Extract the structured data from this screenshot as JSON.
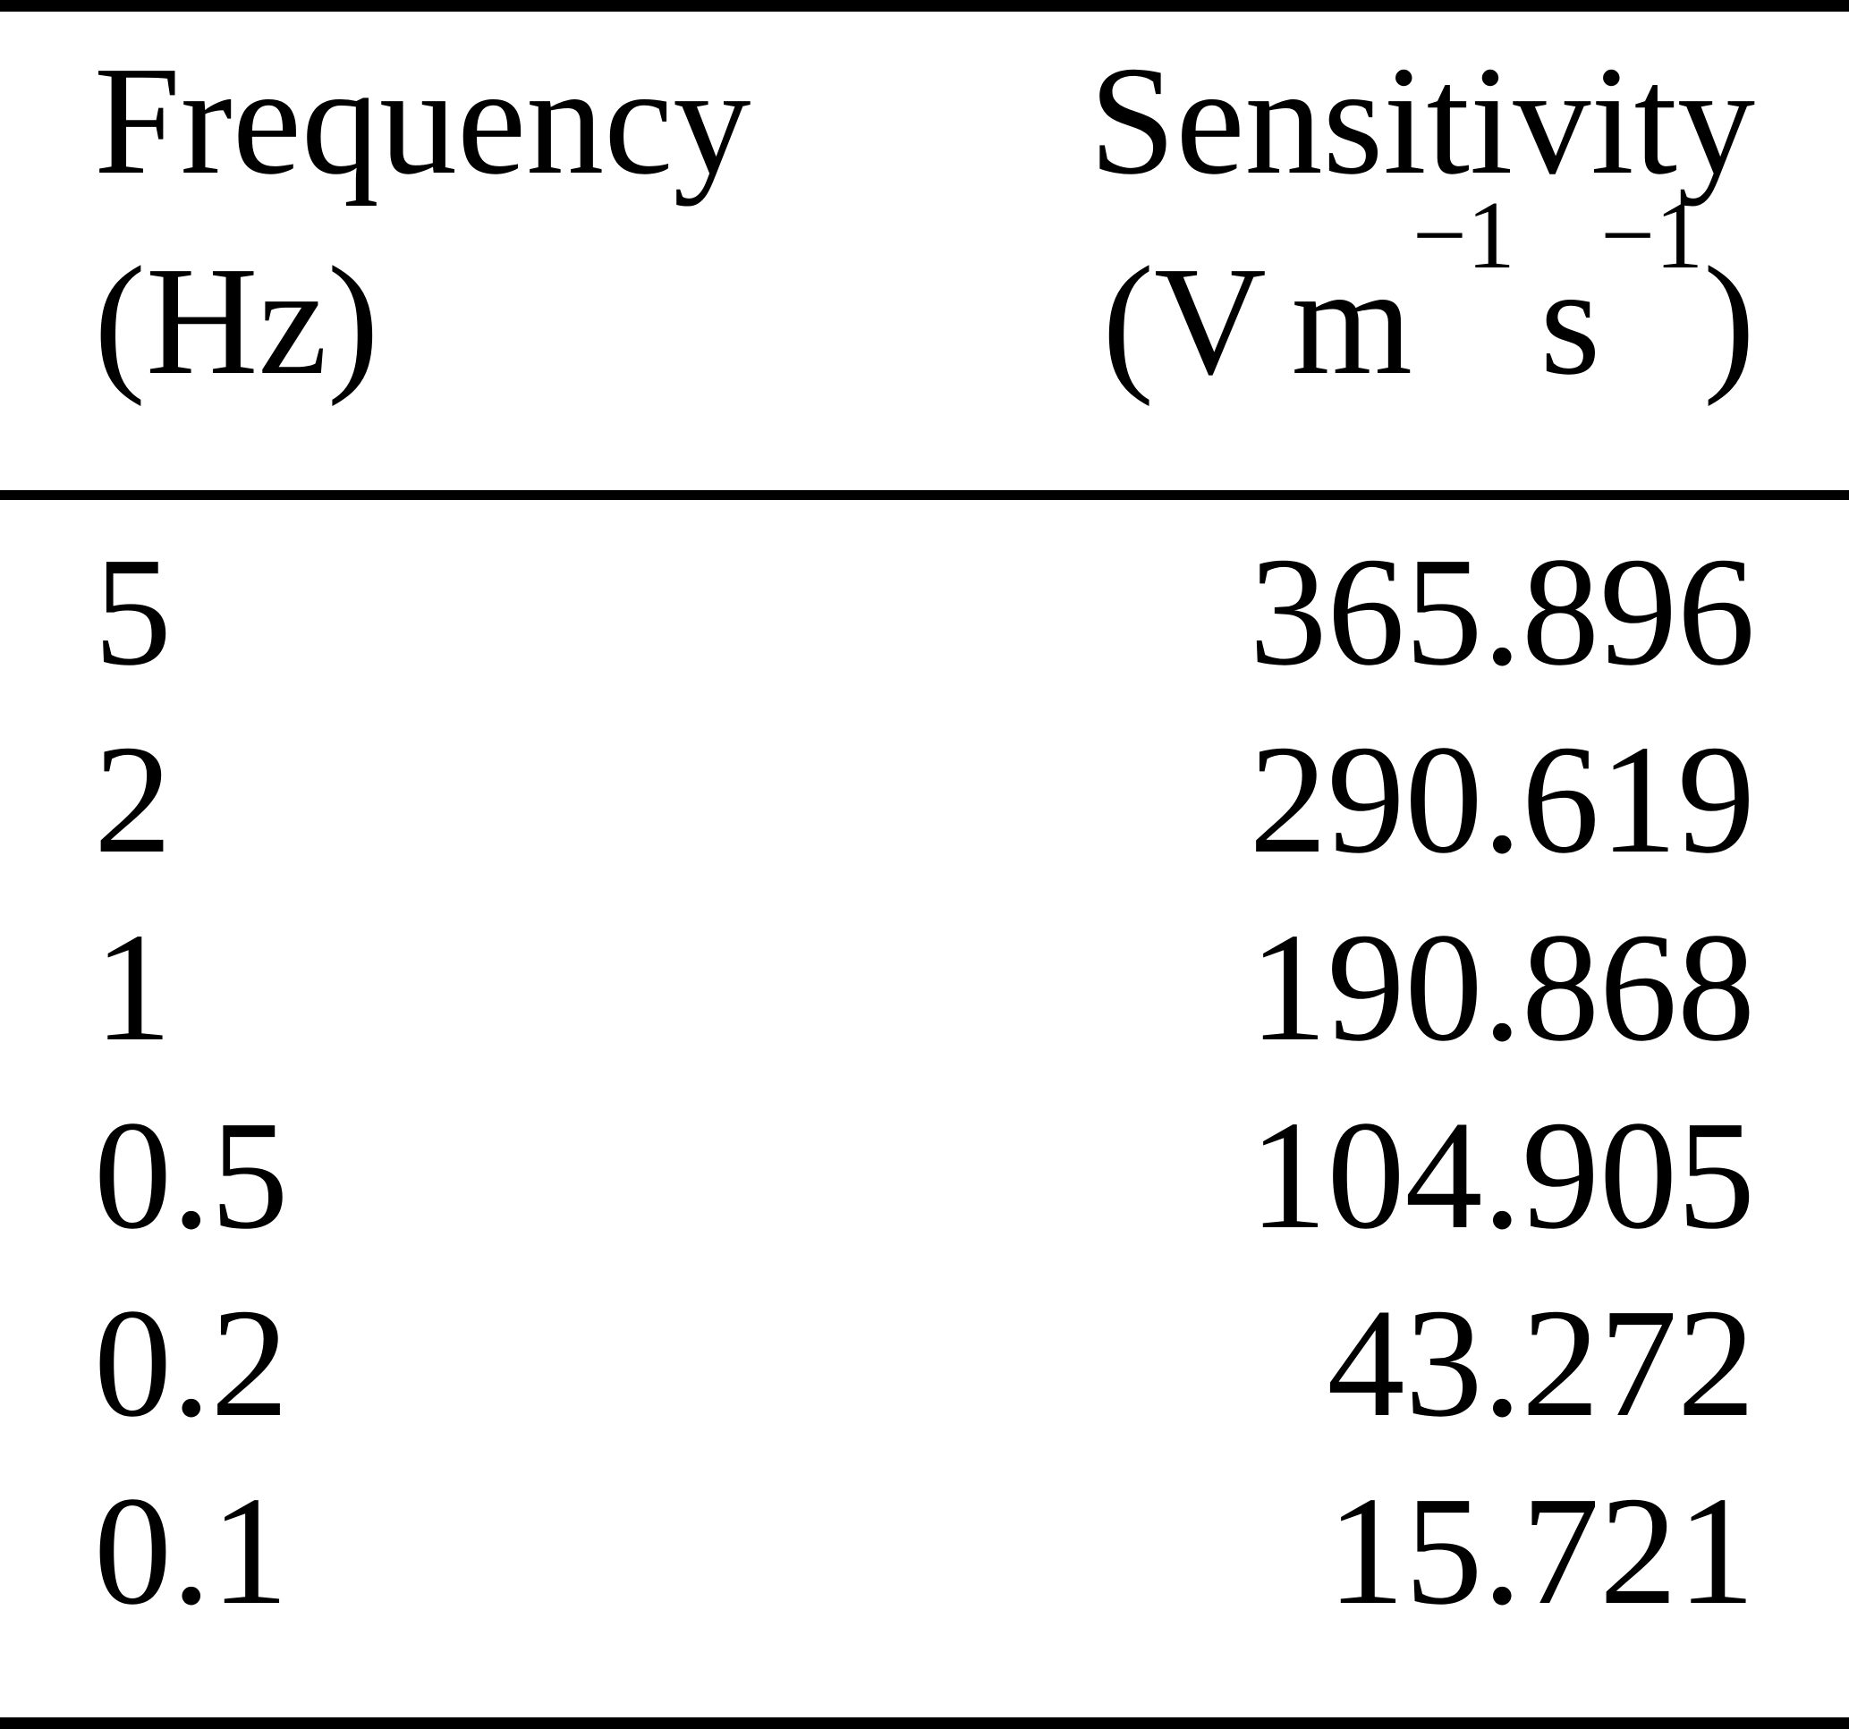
{
  "table": {
    "colors": {
      "background": "#ffffff",
      "text": "#000000",
      "rule": "#000000"
    },
    "header": {
      "col1": {
        "line1": "Frequency",
        "line2": "(Hz)"
      },
      "col2": {
        "line1": "Sensitivity",
        "unit": {
          "open": "(V",
          "m": "m",
          "sup1": "−1",
          "s": "s",
          "sup2": "−1",
          "close": ")"
        }
      }
    },
    "rows": [
      {
        "frequency": "5",
        "sensitivity": "365.896"
      },
      {
        "frequency": "2",
        "sensitivity": "290.619"
      },
      {
        "frequency": "1",
        "sensitivity": "190.868"
      },
      {
        "frequency": "0.5",
        "sensitivity": "104.905"
      },
      {
        "frequency": "0.2",
        "sensitivity": "43.272"
      },
      {
        "frequency": "0.1",
        "sensitivity": "15.721"
      }
    ]
  },
  "chart_data": {
    "type": "table",
    "title": "",
    "columns": [
      "Frequency (Hz)",
      "Sensitivity (V m^-1 s^-1)"
    ],
    "frequencies_hz": [
      5,
      2,
      1,
      0.5,
      0.2,
      0.1
    ],
    "sensitivities_v_m1_s1": [
      365.896,
      290.619,
      190.868,
      104.905,
      43.272,
      15.721
    ]
  }
}
